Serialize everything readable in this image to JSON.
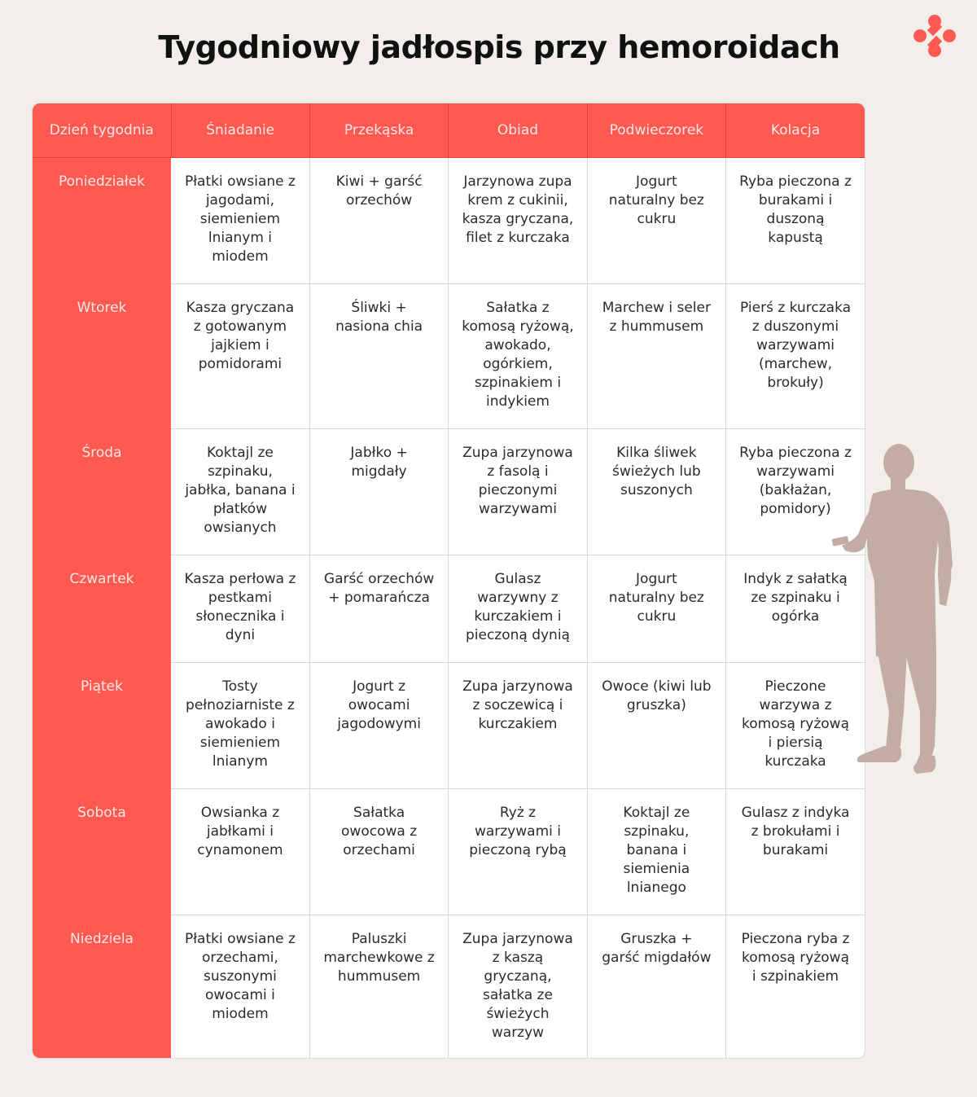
{
  "title": "Tygodniowy jadłospis przy hemoroidach",
  "colors": {
    "accent": "#ff5a52",
    "background": "#f2eee9",
    "silhouette": "#c3aca4"
  },
  "logo": {
    "icon": "brand-logo-icon"
  },
  "table": {
    "headers": [
      "Dzień tygodnia",
      "Śniadanie",
      "Przekąska",
      "Obiad",
      "Podwieczorek",
      "Kolacja"
    ],
    "rows": [
      {
        "day": "Poniedziałek",
        "meals": [
          "Płatki owsiane z jagodami, siemieniem lnianym i miodem",
          "Kiwi + garść orzechów",
          "Jarzynowa zupa krem z cukinii, kasza gryczana, filet z kurczaka",
          "Jogurt naturalny bez cukru",
          "Ryba pieczona z burakami i duszoną kapustą"
        ]
      },
      {
        "day": "Wtorek",
        "meals": [
          "Kasza gryczana z gotowanym jajkiem i pomidorami",
          "Śliwki + nasiona chia",
          "Sałatka z komosą ryżową, awokado, ogórkiem, szpinakiem i indykiem",
          "Marchew i seler z hummusem",
          "Pierś z kurczaka z duszonymi warzywami (marchew, brokuły)"
        ]
      },
      {
        "day": "Środa",
        "meals": [
          "Koktajl ze szpinaku, jabłka, banana i płatków owsianych",
          "Jabłko + migdały",
          "Zupa jarzynowa z fasolą i pieczonymi warzywami",
          "Kilka śliwek świeżych lub suszonych",
          "Ryba pieczona z warzywami (bakłażan, pomidory)"
        ]
      },
      {
        "day": "Czwartek",
        "meals": [
          "Kasza perłowa z pestkami słonecznika i dyni",
          "Garść orzechów + pomarańcza",
          "Gulasz warzywny z kurczakiem i pieczoną dynią",
          "Jogurt naturalny bez cukru",
          "Indyk z sałatką ze szpinaku i ogórka"
        ]
      },
      {
        "day": "Piątek",
        "meals": [
          "Tosty pełnoziarniste z awokado i siemieniem lnianym",
          "Jogurt z owocami jagodowymi",
          "Zupa jarzynowa z soczewicą i kurczakiem",
          "Owoce (kiwi lub gruszka)",
          "Pieczone warzywa z komosą ryżową i piersią kurczaka"
        ]
      },
      {
        "day": "Sobota",
        "meals": [
          "Owsianka z jabłkami i cynamonem",
          "Sałatka owocowa z orzechami",
          "Ryż z warzywami i pieczoną rybą",
          "Koktajl ze szpinaku, banana i siemienia lnianego",
          "Gulasz z indyka z brokułami i burakami"
        ]
      },
      {
        "day": "Niedziela",
        "meals": [
          "Płatki owsiane z orzechami, suszonymi owocami i miodem",
          "Paluszki marchewkowe z hummusem",
          "Zupa jarzynowa z kaszą gryczaną, sałatka ze świeżych warzyw",
          "Gruszka + garść migdałów",
          "Pieczona ryba z komosą ryżową i szpinakiem"
        ]
      }
    ]
  },
  "illustration": {
    "icon": "person-with-phone-silhouette-icon"
  }
}
